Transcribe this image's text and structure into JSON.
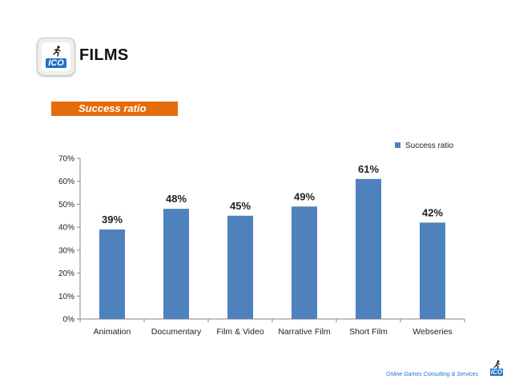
{
  "header": {
    "logo_text": "ICO",
    "title": "FILMS"
  },
  "subtitle": "Success ratio",
  "footer": {
    "text": "Online Games Consulting & Services",
    "logo_text": "ICO"
  },
  "colors": {
    "bar": "#4f81bd",
    "subtitle_bg": "#e46c0a",
    "brand": "#1e6fc8"
  },
  "chart_data": {
    "type": "bar",
    "categories": [
      "Animation",
      "Documentary",
      "Film & Video",
      "Narrative Film",
      "Short Film",
      "Webseries"
    ],
    "series": [
      {
        "name": "Success ratio",
        "values": [
          39,
          48,
          45,
          49,
          61,
          42
        ]
      }
    ],
    "data_labels": [
      "39%",
      "48%",
      "45%",
      "49%",
      "61%",
      "42%"
    ],
    "yticks": [
      "0%",
      "10%",
      "20%",
      "30%",
      "40%",
      "50%",
      "60%",
      "70%"
    ],
    "ylim": [
      0,
      70
    ],
    "grid": false,
    "legend_position": "top-right"
  }
}
